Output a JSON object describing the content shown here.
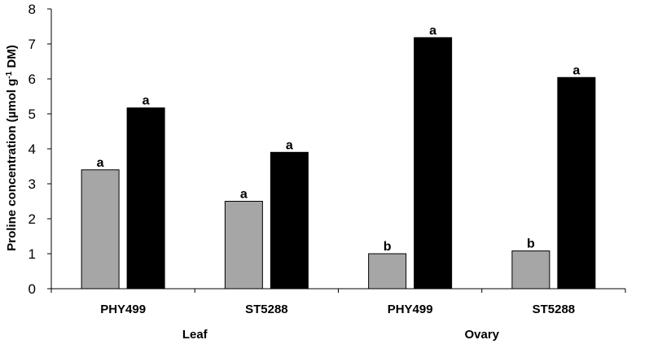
{
  "chart_data": {
    "type": "bar",
    "title": "",
    "xlabel": "",
    "ylabel": "Proline concentration (µmol g",
    "ylabel_sup": "-1",
    "ylabel_end": " DM)",
    "ylim": [
      0,
      8
    ],
    "yticks": [
      0,
      1,
      2,
      3,
      4,
      5,
      6,
      7,
      8
    ],
    "categories": [
      "PHY499",
      "ST5288",
      "PHY499",
      "ST5288"
    ],
    "groups": [
      {
        "label": "Leaf",
        "categories": [
          0,
          1
        ]
      },
      {
        "label": "Ovary",
        "categories": [
          2,
          3
        ]
      }
    ],
    "series": [
      {
        "color": "#a6a6a6",
        "values": [
          3.4,
          2.5,
          1.0,
          1.08
        ],
        "labels": [
          "a",
          "a",
          "b",
          "b"
        ]
      },
      {
        "color": "#000000",
        "values": [
          5.17,
          3.9,
          7.18,
          6.04
        ],
        "labels": [
          "a",
          "a",
          "a",
          "a"
        ]
      }
    ],
    "grid": false,
    "legend": "none"
  }
}
